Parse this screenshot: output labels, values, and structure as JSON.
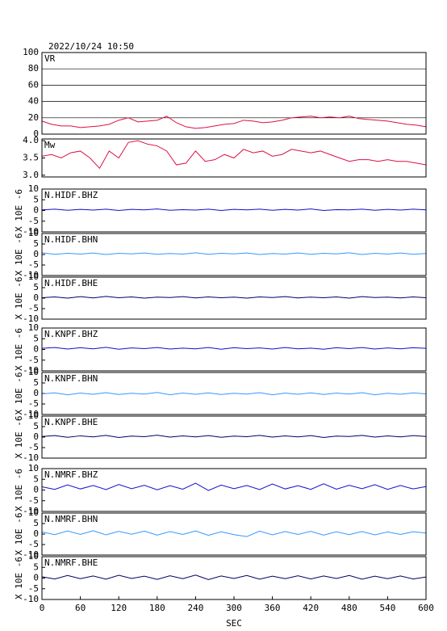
{
  "chart_data": [
    {
      "type": "line",
      "title": "2022/10/24  10:50",
      "xlim": [
        0,
        600
      ],
      "ylim": [
        0,
        100
      ],
      "yticks": [
        0,
        20,
        40,
        60,
        80,
        100
      ],
      "grid": true,
      "x": [
        0,
        15,
        30,
        45,
        60,
        75,
        90,
        105,
        120,
        135,
        150,
        165,
        180,
        195,
        210,
        225,
        240,
        255,
        270,
        285,
        300,
        315,
        330,
        345,
        360,
        375,
        390,
        405,
        420,
        435,
        450,
        465,
        480,
        495,
        510,
        525,
        540,
        555,
        570,
        585,
        600
      ],
      "series": [
        {
          "name": "VR",
          "color": "#dd1144",
          "values": [
            16,
            12,
            10,
            10,
            8,
            9,
            10,
            12,
            17,
            20,
            15,
            16,
            17,
            22,
            14,
            9,
            7,
            8,
            10,
            12,
            13,
            17,
            16,
            14,
            15,
            17,
            20,
            21,
            22,
            20,
            21,
            20,
            22,
            19,
            18,
            17,
            16,
            14,
            12,
            11,
            9
          ]
        }
      ]
    },
    {
      "type": "line",
      "xlim": [
        0,
        600
      ],
      "ylim": [
        2.95,
        4.05
      ],
      "yticks": [
        {
          "value": 3,
          "label": "3.0"
        },
        3.5,
        {
          "value": 4,
          "label": "4.0"
        }
      ],
      "grid": false,
      "x": [
        0,
        15,
        30,
        45,
        60,
        75,
        90,
        105,
        120,
        135,
        150,
        165,
        180,
        195,
        210,
        225,
        240,
        255,
        270,
        285,
        300,
        315,
        330,
        345,
        360,
        375,
        390,
        405,
        420,
        435,
        450,
        465,
        480,
        495,
        510,
        525,
        540,
        555,
        570,
        585,
        600
      ],
      "series": [
        {
          "name": "Mw",
          "color": "#dd1144",
          "values": [
            3.55,
            3.6,
            3.5,
            3.65,
            3.7,
            3.5,
            3.2,
            3.7,
            3.5,
            3.95,
            4.0,
            3.9,
            3.85,
            3.7,
            3.3,
            3.35,
            3.7,
            3.4,
            3.45,
            3.6,
            3.5,
            3.75,
            3.65,
            3.7,
            3.55,
            3.6,
            3.75,
            3.7,
            3.65,
            3.7,
            3.6,
            3.5,
            3.4,
            3.45,
            3.45,
            3.4,
            3.45,
            3.4,
            3.4,
            3.35,
            3.3
          ]
        }
      ]
    },
    {
      "type": "line",
      "xlim": [
        0,
        600
      ],
      "ylim": [
        -10,
        10
      ],
      "yticks": [
        -10,
        -5,
        0,
        5,
        10
      ],
      "grid": false,
      "ylabel": "X 10E -6",
      "x": [
        0,
        20,
        40,
        60,
        80,
        100,
        120,
        140,
        160,
        180,
        200,
        220,
        240,
        260,
        280,
        300,
        320,
        340,
        360,
        380,
        400,
        420,
        440,
        460,
        480,
        500,
        520,
        540,
        560,
        580,
        600
      ],
      "series": [
        {
          "name": "N.HIDF.BHZ",
          "color": "#1010cc",
          "values": [
            0.3,
            0.6,
            0.1,
            0.5,
            0.2,
            0.6,
            0.0,
            0.5,
            0.3,
            0.7,
            0.1,
            0.4,
            0.2,
            0.6,
            0.0,
            0.5,
            0.3,
            0.6,
            0.1,
            0.5,
            0.2,
            0.7,
            0.0,
            0.4,
            0.3,
            0.6,
            0.1,
            0.5,
            0.2,
            0.6,
            0.3
          ]
        }
      ]
    },
    {
      "type": "line",
      "xlim": [
        0,
        600
      ],
      "ylim": [
        -10,
        10
      ],
      "yticks": [
        -10,
        -5,
        0,
        5,
        10
      ],
      "grid": false,
      "ylabel": "X 10E -6",
      "x": [
        0,
        20,
        40,
        60,
        80,
        100,
        120,
        140,
        160,
        180,
        200,
        220,
        240,
        260,
        280,
        300,
        320,
        340,
        360,
        380,
        400,
        420,
        440,
        460,
        480,
        500,
        520,
        540,
        560,
        580,
        600
      ],
      "series": [
        {
          "name": "N.HIDF.BHN",
          "color": "#3399ff",
          "values": [
            0.8,
            0.1,
            0.6,
            0.2,
            0.7,
            0.0,
            0.6,
            0.3,
            0.7,
            0.1,
            0.5,
            0.2,
            0.8,
            0.1,
            0.6,
            0.3,
            0.7,
            0.0,
            0.5,
            0.2,
            0.7,
            0.1,
            0.6,
            0.3,
            0.8,
            0.0,
            0.6,
            0.2,
            0.7,
            0.1,
            0.5
          ]
        }
      ]
    },
    {
      "type": "line",
      "xlim": [
        0,
        600
      ],
      "ylim": [
        -10,
        10
      ],
      "yticks": [
        -10,
        -5,
        0,
        5,
        10
      ],
      "grid": false,
      "ylabel": "X 10E -6",
      "x": [
        0,
        20,
        40,
        60,
        80,
        100,
        120,
        140,
        160,
        180,
        200,
        220,
        240,
        260,
        280,
        300,
        320,
        340,
        360,
        380,
        400,
        420,
        440,
        460,
        480,
        500,
        520,
        540,
        560,
        580,
        600
      ],
      "series": [
        {
          "name": "N.HIDF.BHE",
          "color": "#000066",
          "values": [
            0.2,
            0.6,
            0.0,
            0.7,
            0.1,
            0.8,
            0.2,
            0.6,
            0.0,
            0.5,
            0.3,
            0.7,
            0.1,
            0.6,
            0.2,
            0.5,
            0.0,
            0.6,
            0.3,
            0.7,
            0.1,
            0.5,
            0.2,
            0.6,
            0.0,
            0.7,
            0.3,
            0.5,
            0.1,
            0.6,
            0.2
          ]
        }
      ]
    },
    {
      "type": "line",
      "xlim": [
        0,
        600
      ],
      "ylim": [
        -10,
        10
      ],
      "yticks": [
        -10,
        -5,
        0,
        5,
        10
      ],
      "grid": false,
      "ylabel": "X 10E -6",
      "x": [
        0,
        20,
        40,
        60,
        80,
        100,
        120,
        140,
        160,
        180,
        200,
        220,
        240,
        260,
        280,
        300,
        320,
        340,
        360,
        380,
        400,
        420,
        440,
        460,
        480,
        500,
        520,
        540,
        560,
        580,
        600
      ],
      "series": [
        {
          "name": "N.KNPF.BHZ",
          "color": "#1010cc",
          "values": [
            0.5,
            0.9,
            0.2,
            0.8,
            0.3,
            1.0,
            0.1,
            0.7,
            0.4,
            0.9,
            0.2,
            0.6,
            0.3,
            0.9,
            0.1,
            0.8,
            0.4,
            0.7,
            0.2,
            0.9,
            0.3,
            0.6,
            0.1,
            0.8,
            0.4,
            0.9,
            0.2,
            0.7,
            0.3,
            0.8,
            0.5
          ]
        }
      ]
    },
    {
      "type": "line",
      "xlim": [
        0,
        600
      ],
      "ylim": [
        -10,
        10
      ],
      "yticks": [
        -10,
        -5,
        0,
        5,
        10
      ],
      "grid": false,
      "ylabel": "X 10E -6",
      "x": [
        0,
        20,
        40,
        60,
        80,
        100,
        120,
        140,
        160,
        180,
        200,
        220,
        240,
        260,
        280,
        300,
        320,
        340,
        360,
        380,
        400,
        420,
        440,
        460,
        480,
        500,
        520,
        540,
        560,
        580,
        600
      ],
      "series": [
        {
          "name": "N.KNPF.BHN",
          "color": "#3399ff",
          "values": [
            -0.2,
            0.3,
            -0.6,
            0.2,
            -0.4,
            0.4,
            -0.5,
            0.1,
            -0.3,
            0.5,
            -0.6,
            0.2,
            -0.4,
            0.3,
            -0.5,
            0.1,
            -0.3,
            0.4,
            -0.6,
            0.2,
            -0.4,
            0.3,
            -0.5,
            0.2,
            -0.3,
            0.4,
            -0.6,
            0.1,
            -0.4,
            0.3,
            -0.2
          ]
        }
      ]
    },
    {
      "type": "line",
      "xlim": [
        0,
        600
      ],
      "ylim": [
        -10,
        10
      ],
      "yticks": [
        -10,
        -5,
        0,
        5,
        10
      ],
      "grid": false,
      "ylabel": "X 10E -6",
      "x": [
        0,
        20,
        40,
        60,
        80,
        100,
        120,
        140,
        160,
        180,
        200,
        220,
        240,
        260,
        280,
        300,
        320,
        340,
        360,
        380,
        400,
        420,
        440,
        460,
        480,
        500,
        520,
        540,
        560,
        580,
        600
      ],
      "series": [
        {
          "name": "N.KNPF.BHE",
          "color": "#000066",
          "values": [
            0.3,
            0.7,
            -0.1,
            0.6,
            0.1,
            0.8,
            -0.2,
            0.5,
            0.2,
            0.9,
            0.0,
            0.6,
            0.1,
            0.7,
            -0.1,
            0.5,
            0.2,
            0.8,
            0.0,
            0.6,
            0.1,
            0.7,
            -0.2,
            0.5,
            0.3,
            0.8,
            0.0,
            0.6,
            0.1,
            0.7,
            0.3
          ]
        }
      ]
    },
    {
      "type": "line",
      "xlim": [
        0,
        600
      ],
      "ylim": [
        -10,
        10
      ],
      "yticks": [
        -10,
        -5,
        0,
        5,
        10
      ],
      "grid": false,
      "ylabel": "X 10E -6",
      "x": [
        0,
        20,
        40,
        60,
        80,
        100,
        120,
        140,
        160,
        180,
        200,
        220,
        240,
        260,
        280,
        300,
        320,
        340,
        360,
        380,
        400,
        420,
        440,
        460,
        480,
        500,
        520,
        540,
        560,
        580,
        600
      ],
      "series": [
        {
          "name": "N.NMRF.BHZ",
          "color": "#1010cc",
          "values": [
            1.5,
            0.3,
            2.4,
            0.5,
            2.1,
            0.2,
            2.6,
            0.6,
            2.2,
            0.1,
            2.0,
            0.4,
            3.2,
            -0.2,
            2.3,
            0.6,
            2.1,
            0.2,
            2.8,
            0.5,
            2.0,
            0.3,
            2.9,
            0.4,
            2.2,
            0.6,
            2.5,
            0.3,
            2.1,
            0.5,
            1.6
          ]
        }
      ]
    },
    {
      "type": "line",
      "xlim": [
        0,
        600
      ],
      "ylim": [
        -10,
        10
      ],
      "yticks": [
        -10,
        -5,
        0,
        5,
        10
      ],
      "grid": false,
      "ylabel": "X 10E -6",
      "x": [
        0,
        20,
        40,
        60,
        80,
        100,
        120,
        140,
        160,
        180,
        200,
        220,
        240,
        260,
        280,
        300,
        320,
        340,
        360,
        380,
        400,
        420,
        440,
        460,
        480,
        500,
        520,
        540,
        560,
        580,
        600
      ],
      "series": [
        {
          "name": "N.NMRF.BHN",
          "color": "#3399ff",
          "values": [
            1.0,
            -0.3,
            1.5,
            -0.2,
            1.6,
            -0.4,
            1.3,
            -0.1,
            1.4,
            -0.5,
            1.2,
            -0.2,
            1.5,
            -0.6,
            1.1,
            -0.3,
            -1.2,
            1.4,
            -0.4,
            1.2,
            -0.2,
            1.3,
            -0.5,
            1.1,
            -0.3,
            1.2,
            -0.4,
            1.0,
            -0.2,
            1.1,
            0.5
          ]
        }
      ]
    },
    {
      "type": "line",
      "xlim": [
        0,
        600
      ],
      "ylim": [
        -10,
        10
      ],
      "yticks": [
        -10,
        -5,
        0,
        5,
        10
      ],
      "grid": false,
      "ylabel": "X 10E -6",
      "xticks": [
        0,
        60,
        120,
        180,
        240,
        300,
        360,
        420,
        480,
        540,
        600
      ],
      "xlabel": "SEC",
      "x": [
        0,
        20,
        40,
        60,
        80,
        100,
        120,
        140,
        160,
        180,
        200,
        220,
        240,
        260,
        280,
        300,
        320,
        340,
        360,
        380,
        400,
        420,
        440,
        460,
        480,
        500,
        520,
        540,
        560,
        580,
        600
      ],
      "series": [
        {
          "name": "N.NMRF.BHE",
          "color": "#000066",
          "values": [
            0.6,
            -0.4,
            1.2,
            -0.3,
            1.0,
            -0.5,
            1.3,
            -0.2,
            0.9,
            -0.6,
            1.1,
            -0.3,
            1.4,
            -0.7,
            1.0,
            -0.2,
            1.2,
            -0.5,
            0.9,
            -0.3,
            1.1,
            -0.4,
            1.0,
            -0.2,
            1.2,
            -0.5,
            0.9,
            -0.3,
            1.0,
            -0.4,
            0.5
          ]
        }
      ]
    }
  ]
}
